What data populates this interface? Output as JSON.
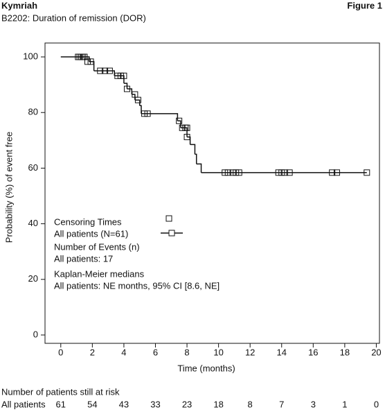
{
  "header": {
    "title": "Kymriah",
    "subtitle": "B2202: Duration of remission (DOR)",
    "figure": "Figure 1"
  },
  "chart_data": {
    "type": "step",
    "xlabel": "Time (months)",
    "ylabel": "Probability (%) of event free",
    "xlim": [
      -1,
      20.2
    ],
    "ylim": [
      -3,
      105
    ],
    "xticks": [
      0,
      2,
      4,
      6,
      8,
      10,
      12,
      14,
      16,
      18,
      20
    ],
    "yticks": [
      0,
      20,
      40,
      60,
      80,
      100
    ],
    "color": "#111111",
    "series": [
      {
        "name": "All patients (N=61)",
        "x": [
          0,
          1.8,
          2.1,
          3.4,
          4.0,
          4.2,
          4.5,
          4.7,
          5.0,
          5.1,
          7.4,
          7.6,
          8.0,
          8.2,
          8.5,
          8.6,
          8.7,
          8.9,
          19.4
        ],
        "values": [
          100,
          98.3,
          95.0,
          93.2,
          90.5,
          88.5,
          86.5,
          84.5,
          82.5,
          79.6,
          77.0,
          74.5,
          71.2,
          68.5,
          65.0,
          61.5,
          61.5,
          58.4,
          58.4
        ]
      }
    ],
    "censor": {
      "name": "Censoring Times",
      "x": [
        1.1,
        1.2,
        1.3,
        1.4,
        1.5,
        1.7,
        1.9,
        2.5,
        2.8,
        3.1,
        3.6,
        3.8,
        4.0,
        4.2,
        4.7,
        4.9,
        5.3,
        5.5,
        7.5,
        7.7,
        7.9,
        8.0,
        8.0,
        10.4,
        10.6,
        10.9,
        11.1,
        11.3,
        13.8,
        14.0,
        14.2,
        14.5,
        17.2,
        17.5,
        19.4
      ],
      "values": [
        100,
        100,
        100,
        100,
        100,
        98.3,
        98.3,
        95.0,
        95.0,
        95.0,
        93.2,
        93.2,
        93.2,
        88.5,
        86.5,
        84.5,
        79.6,
        79.6,
        77.0,
        74.5,
        74.5,
        74.5,
        71.2,
        58.4,
        58.4,
        58.4,
        58.4,
        58.4,
        58.4,
        58.4,
        58.4,
        58.4,
        58.4,
        58.4,
        58.4
      ]
    },
    "annotations": [
      "Number of Events (n)",
      "All patients: 17",
      "Kaplan-Meier medians",
      "All patients: NE months, 95% CI [8.6, NE]"
    ]
  },
  "risk_table": {
    "title": "Number of patients still at risk",
    "label": "All patients",
    "values": [
      61,
      54,
      43,
      33,
      23,
      18,
      8,
      7,
      3,
      1,
      0
    ]
  }
}
